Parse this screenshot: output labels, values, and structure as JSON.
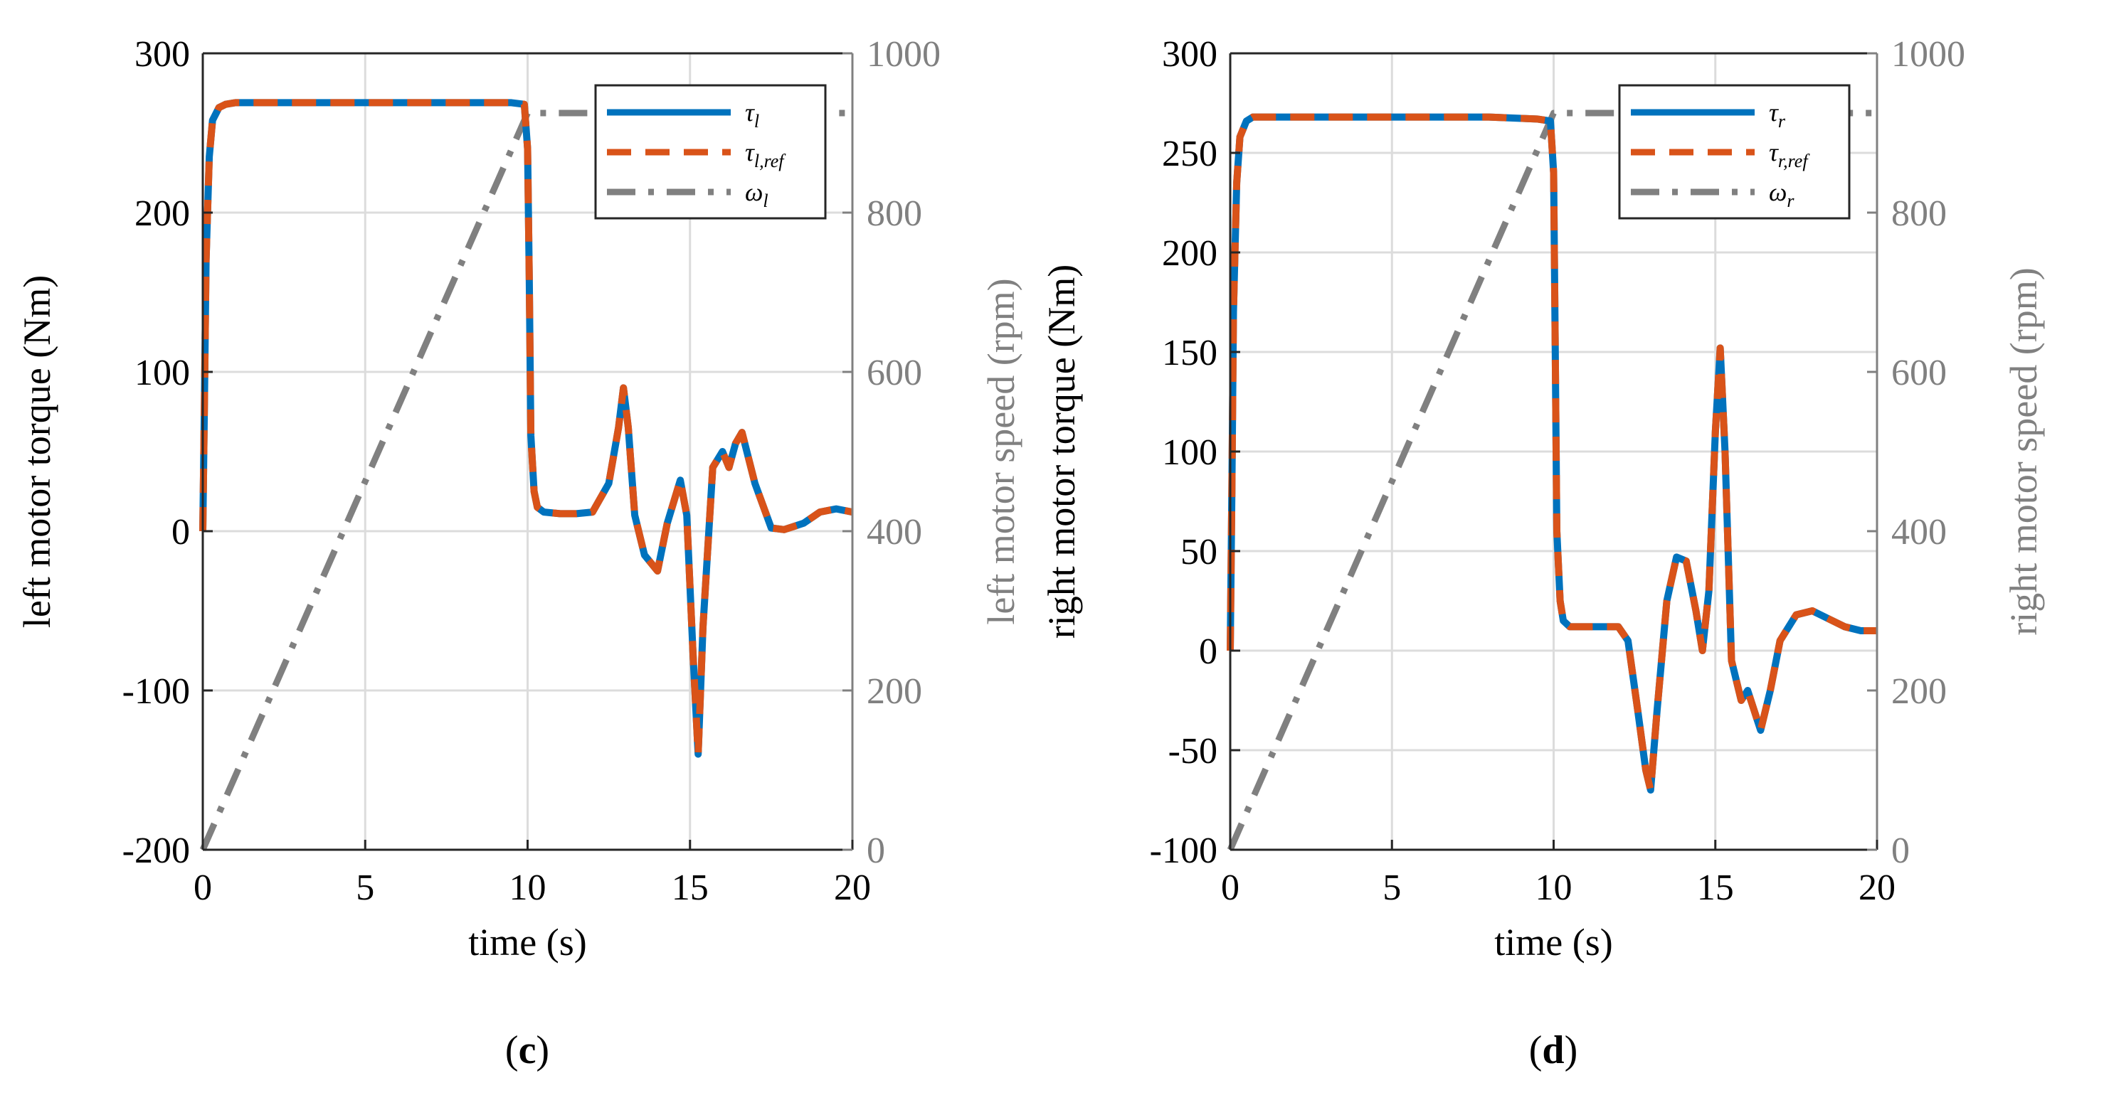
{
  "chart_data": [
    {
      "type": "line",
      "panel_caption": "c",
      "xlabel": "time (s)",
      "ylabel": "left motor torque (Nm)",
      "ylabel_right": "left motor speed (rpm)",
      "xlim": [
        0,
        20
      ],
      "ylim": [
        -200,
        300
      ],
      "ylim_right": [
        0,
        1000
      ],
      "xticks": [
        0,
        5,
        10,
        15,
        20
      ],
      "yticks": [
        -200,
        -100,
        0,
        100,
        200,
        300
      ],
      "yticks_right": [
        0,
        200,
        400,
        600,
        800,
        1000
      ],
      "grid": true,
      "legend_position": "top-right",
      "series": [
        {
          "name": "τ_l",
          "name_main": "τ",
          "name_sub": "l",
          "axis": "left",
          "color": "#0072BD",
          "style": "solid",
          "x": [
            0,
            0.05,
            0.1,
            0.2,
            0.3,
            0.5,
            0.7,
            1.0,
            2.0,
            5.0,
            8.0,
            9.5,
            9.9,
            10.0,
            10.05,
            10.1,
            10.2,
            10.3,
            10.5,
            11.0,
            11.5,
            12.0,
            12.5,
            12.8,
            12.95,
            13.1,
            13.3,
            13.6,
            14.0,
            14.3,
            14.7,
            14.9,
            15.1,
            15.25,
            15.4,
            15.7,
            16.0,
            16.2,
            16.4,
            16.6,
            17.0,
            17.5,
            17.9,
            18.5,
            19.0,
            19.5,
            20.0
          ],
          "y": [
            0,
            80,
            170,
            235,
            258,
            266,
            268,
            269,
            269,
            269,
            269,
            269,
            268,
            240,
            160,
            60,
            25,
            15,
            12,
            11,
            11,
            12,
            30,
            65,
            90,
            65,
            10,
            -15,
            -25,
            5,
            32,
            10,
            -80,
            -140,
            -60,
            40,
            50,
            40,
            55,
            62,
            30,
            2,
            1,
            5,
            12,
            14,
            12
          ]
        },
        {
          "name": "τ_l,ref",
          "name_main": "τ",
          "name_sub": "l,ref",
          "axis": "left",
          "color": "#D95319",
          "style": "dashed",
          "x": [
            0,
            0.05,
            0.1,
            0.2,
            0.3,
            0.5,
            0.7,
            1.0,
            2.0,
            5.0,
            8.0,
            9.5,
            9.9,
            10.0,
            10.05,
            10.1,
            10.2,
            10.3,
            10.5,
            11.0,
            11.5,
            12.0,
            12.5,
            12.8,
            12.95,
            13.1,
            13.3,
            13.6,
            14.0,
            14.3,
            14.7,
            14.9,
            15.1,
            15.25,
            15.4,
            15.7,
            16.0,
            16.2,
            16.4,
            16.6,
            17.0,
            17.5,
            17.9,
            18.5,
            19.0,
            19.5,
            20.0
          ],
          "y": [
            0,
            80,
            170,
            235,
            258,
            266,
            268,
            269,
            269,
            269,
            269,
            269,
            268,
            240,
            160,
            60,
            25,
            15,
            12,
            11,
            11,
            12,
            30,
            65,
            90,
            65,
            10,
            -15,
            -25,
            5,
            32,
            10,
            -80,
            -140,
            -60,
            40,
            50,
            40,
            55,
            62,
            30,
            2,
            1,
            5,
            12,
            14,
            12
          ]
        },
        {
          "name": "ω_l",
          "name_main": "ω",
          "name_sub": "l",
          "axis": "right",
          "color": "#808080",
          "style": "dashdot",
          "x": [
            0,
            10,
            20
          ],
          "y": [
            0,
            925,
            925
          ]
        }
      ]
    },
    {
      "type": "line",
      "panel_caption": "d",
      "xlabel": "time (s)",
      "ylabel": "right motor torque (Nm)",
      "ylabel_right": "right motor speed (rpm)",
      "xlim": [
        0,
        20
      ],
      "ylim": [
        -100,
        300
      ],
      "ylim_right": [
        0,
        1000
      ],
      "xticks": [
        0,
        5,
        10,
        15,
        20
      ],
      "yticks": [
        -100,
        -50,
        0,
        50,
        100,
        150,
        200,
        250,
        300
      ],
      "yticks_right": [
        0,
        200,
        400,
        600,
        800,
        1000
      ],
      "grid": true,
      "legend_position": "top-right",
      "series": [
        {
          "name": "τ_r",
          "name_main": "τ",
          "name_sub": "r",
          "axis": "left",
          "color": "#0072BD",
          "style": "solid",
          "x": [
            0,
            0.05,
            0.1,
            0.2,
            0.3,
            0.5,
            0.7,
            1.0,
            2.0,
            5.0,
            8.0,
            9.5,
            9.9,
            10.0,
            10.05,
            10.1,
            10.2,
            10.3,
            10.5,
            11.0,
            11.5,
            12.0,
            12.3,
            12.6,
            12.85,
            13.0,
            13.2,
            13.5,
            13.8,
            14.1,
            14.4,
            14.6,
            14.8,
            15.0,
            15.15,
            15.3,
            15.5,
            15.8,
            16.0,
            16.2,
            16.4,
            16.7,
            17.0,
            17.5,
            18.0,
            18.5,
            19.0,
            19.5,
            20.0
          ],
          "y": [
            0,
            80,
            170,
            235,
            258,
            266,
            268,
            268,
            268,
            268,
            268,
            267,
            266,
            240,
            150,
            60,
            25,
            15,
            12,
            12,
            12,
            12,
            5,
            -30,
            -60,
            -70,
            -30,
            25,
            47,
            45,
            20,
            0,
            30,
            110,
            152,
            100,
            -5,
            -25,
            -20,
            -30,
            -40,
            -20,
            5,
            18,
            20,
            16,
            12,
            10,
            10
          ]
        },
        {
          "name": "τ_r,ref",
          "name_main": "τ",
          "name_sub": "r,ref",
          "axis": "left",
          "color": "#D95319",
          "style": "dashed",
          "x": [
            0,
            0.05,
            0.1,
            0.2,
            0.3,
            0.5,
            0.7,
            1.0,
            2.0,
            5.0,
            8.0,
            9.5,
            9.9,
            10.0,
            10.05,
            10.1,
            10.2,
            10.3,
            10.5,
            11.0,
            11.5,
            12.0,
            12.3,
            12.6,
            12.85,
            13.0,
            13.2,
            13.5,
            13.8,
            14.1,
            14.4,
            14.6,
            14.8,
            15.0,
            15.15,
            15.3,
            15.5,
            15.8,
            16.0,
            16.2,
            16.4,
            16.7,
            17.0,
            17.5,
            18.0,
            18.5,
            19.0,
            19.5,
            20.0
          ],
          "y": [
            0,
            80,
            170,
            235,
            258,
            266,
            268,
            268,
            268,
            268,
            268,
            267,
            266,
            240,
            150,
            60,
            25,
            15,
            12,
            12,
            12,
            12,
            5,
            -30,
            -60,
            -70,
            -30,
            25,
            47,
            45,
            20,
            0,
            30,
            110,
            152,
            100,
            -5,
            -25,
            -20,
            -30,
            -40,
            -20,
            5,
            18,
            20,
            16,
            12,
            10,
            10
          ]
        },
        {
          "name": "ω_r",
          "name_main": "ω",
          "name_sub": "r",
          "axis": "right",
          "color": "#808080",
          "style": "dashdot",
          "x": [
            0,
            10,
            20
          ],
          "y": [
            0,
            925,
            925
          ]
        }
      ]
    }
  ]
}
